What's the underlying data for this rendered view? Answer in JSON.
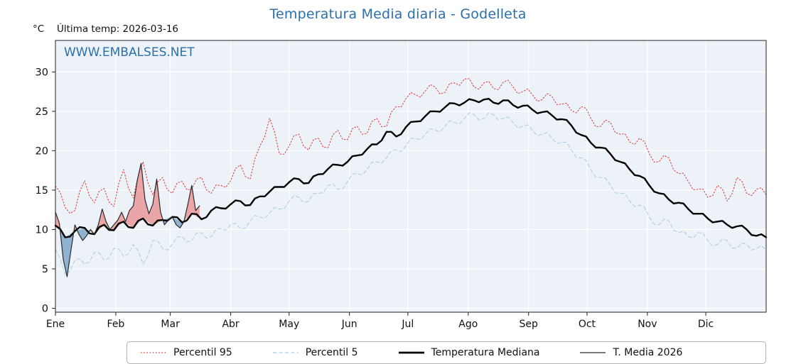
{
  "header": {
    "title": "Temperatura Media diaria - Godelleta",
    "unit_label": "°C",
    "last_temp_label": "Última temp: 2026-03-16",
    "watermark": "WWW.EMBALSES.NET"
  },
  "colors": {
    "title": "#2b6fac",
    "watermark": "#2b6fac",
    "plot_bg": "#edf2f8",
    "grid": "#ffffff",
    "axis": "#222222",
    "fill_above": "#e87070",
    "fill_below": "#4f86b8",
    "legend_border": "#b3b3b3"
  },
  "chart_data": {
    "type": "line",
    "title": "Temperatura Media diaria - Godelleta",
    "xlabel": "",
    "ylabel": "°C",
    "ylim": [
      0,
      34
    ],
    "yticks": [
      0,
      5,
      10,
      15,
      20,
      25,
      30
    ],
    "grid": true,
    "legend_position": "bottom",
    "x_axis": {
      "unit": "day_of_year",
      "days": 365,
      "months": [
        "Ene",
        "Feb",
        "Mar",
        "Abr",
        "May",
        "Jun",
        "Jul",
        "Ago",
        "Sep",
        "Oct",
        "Nov",
        "Dic"
      ],
      "month_start_days": [
        0,
        31,
        59,
        90,
        120,
        151,
        181,
        212,
        243,
        273,
        304,
        334
      ]
    },
    "series": [
      {
        "name": "Percentil 95",
        "color": "#e03535",
        "line_style": "dotted",
        "line_width": 1,
        "x_step": 5,
        "values": [
          15.5,
          12.8,
          12.4,
          16.2,
          13.4,
          15.2,
          12.9,
          17.6,
          14.0,
          18.6,
          14.4,
          16.6,
          14.6,
          16.1,
          15.1,
          16.6,
          14.6,
          15.6,
          16.2,
          18.2,
          16.4,
          20.6,
          24.1,
          19.6,
          20.6,
          22.1,
          20.1,
          21.6,
          20.4,
          22.6,
          21.4,
          23.1,
          22.2,
          24.1,
          23.1,
          25.6,
          26.6,
          27.1,
          27.6,
          28.1,
          27.4,
          28.6,
          29.1,
          28.1,
          28.6,
          27.9,
          28.7,
          28.1,
          27.5,
          27.1,
          26.5,
          26.9,
          25.9,
          25.1,
          25.6,
          24.1,
          23.1,
          23.6,
          22.1,
          21.1,
          21.6,
          19.6,
          18.6,
          19.1,
          17.1,
          16.1,
          15.1,
          14.1,
          15.6,
          13.6,
          16.6,
          14.6,
          15.1,
          14.4
        ]
      },
      {
        "name": "Percentil 5",
        "color": "#a6cee3",
        "line_style": "dashed",
        "line_width": 1,
        "x_step": 5,
        "values": [
          7.5,
          4.2,
          6.1,
          5.6,
          7.1,
          6.1,
          7.6,
          6.6,
          8.1,
          5.6,
          8.6,
          7.6,
          8.1,
          9.1,
          8.6,
          9.6,
          9.1,
          10.1,
          10.6,
          10.1,
          11.1,
          11.6,
          12.1,
          12.6,
          13.6,
          14.1,
          13.6,
          14.6,
          15.6,
          15.1,
          16.1,
          17.1,
          17.6,
          18.6,
          19.1,
          20.1,
          20.6,
          21.6,
          22.1,
          22.6,
          23.1,
          23.6,
          24.1,
          24.6,
          24.1,
          24.6,
          24.1,
          23.6,
          23.1,
          22.6,
          22.1,
          21.6,
          21.1,
          20.1,
          19.1,
          17.6,
          16.6,
          15.6,
          14.6,
          13.6,
          13.1,
          11.6,
          10.6,
          11.1,
          9.6,
          9.1,
          9.6,
          8.6,
          8.1,
          8.6,
          7.6,
          8.1,
          7.6,
          7.4
        ]
      },
      {
        "name": "Temperatura Mediana",
        "color": "#000000",
        "line_style": "solid",
        "line_width": 2.4,
        "x_step": 5,
        "values": [
          10.5,
          9.0,
          9.8,
          10.2,
          9.4,
          10.6,
          9.9,
          11.0,
          10.2,
          11.4,
          10.5,
          11.2,
          11.6,
          10.9,
          12.0,
          11.3,
          12.4,
          12.7,
          13.2,
          13.6,
          13.1,
          14.2,
          14.8,
          15.4,
          16.0,
          16.4,
          15.9,
          17.0,
          17.7,
          18.2,
          18.6,
          19.4,
          20.2,
          20.8,
          22.4,
          21.8,
          23.0,
          23.7,
          24.4,
          25.0,
          25.5,
          26.0,
          26.1,
          26.4,
          26.5,
          26.1,
          26.4,
          25.8,
          25.7,
          25.2,
          24.9,
          24.5,
          24.0,
          23.2,
          22.0,
          21.0,
          20.4,
          19.6,
          18.6,
          17.6,
          16.8,
          15.6,
          14.6,
          13.8,
          13.4,
          12.6,
          12.0,
          11.4,
          11.0,
          10.6,
          10.4,
          10.0,
          9.2,
          9.0
        ]
      },
      {
        "name": "T. Media 2026",
        "color": "#2b2b2b",
        "line_style": "solid",
        "line_width": 1.2,
        "fill_vs_series": "Temperatura Mediana",
        "x": [
          0,
          2,
          4,
          6,
          8,
          10,
          12,
          14,
          16,
          18,
          20,
          22,
          24,
          26,
          28,
          30,
          32,
          34,
          36,
          38,
          40,
          42,
          44,
          46,
          48,
          50,
          52,
          54,
          56,
          58,
          60,
          62,
          64,
          66,
          68,
          70,
          72,
          74
        ],
        "values": [
          12.2,
          10.8,
          6.2,
          4.0,
          7.4,
          10.6,
          9.4,
          8.6,
          9.2,
          10.0,
          9.4,
          10.6,
          12.6,
          11.0,
          10.0,
          10.6,
          11.2,
          12.2,
          11.0,
          12.4,
          13.0,
          16.2,
          18.4,
          13.8,
          12.0,
          13.2,
          16.4,
          12.2,
          10.6,
          11.2,
          11.6,
          10.6,
          10.2,
          11.0,
          13.2,
          15.6,
          12.4,
          13.0
        ]
      }
    ]
  }
}
